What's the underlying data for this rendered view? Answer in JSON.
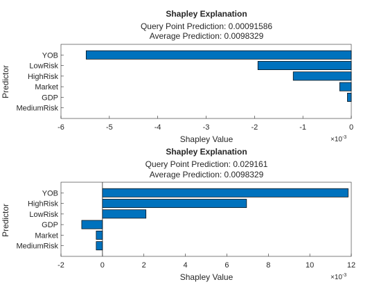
{
  "chart_data": [
    {
      "type": "bar",
      "orientation": "horizontal",
      "title": "Shapley Explanation",
      "subtitle_lines": [
        "Query Point Prediction: 0.00091586",
        "Average Prediction: 0.0098329"
      ],
      "xlabel": "Shapley Value",
      "ylabel": "Predictor",
      "x_exponent_label": "×10",
      "x_exponent_power": "-3",
      "xlim": [
        -6,
        0
      ],
      "xticks": [
        -6,
        -5,
        -4,
        -3,
        -2,
        -1,
        0
      ],
      "xtick_labels": [
        "-6",
        "-5",
        "-4",
        "-3",
        "-2",
        "-1",
        "0"
      ],
      "categories": [
        "YOB",
        "LowRisk",
        "HighRisk",
        "Market",
        "GDP",
        "MediumRisk"
      ],
      "values": [
        -5.48,
        -1.93,
        -1.2,
        -0.24,
        -0.08,
        0
      ],
      "bar_color": "#0072BD",
      "grid": false
    },
    {
      "type": "bar",
      "orientation": "horizontal",
      "title": "Shapley Explanation",
      "subtitle_lines": [
        "Query Point Prediction: 0.029161",
        "Average Prediction: 0.0098329"
      ],
      "xlabel": "Shapley Value",
      "ylabel": "Predictor",
      "x_exponent_label": "×10",
      "x_exponent_power": "-3",
      "xlim": [
        -2,
        12
      ],
      "xticks": [
        -2,
        0,
        2,
        4,
        6,
        8,
        10,
        12
      ],
      "xtick_labels": [
        "-2",
        "0",
        "2",
        "4",
        "6",
        "8",
        "10",
        "12"
      ],
      "categories": [
        "YOB",
        "HighRisk",
        "LowRisk",
        "GDP",
        "Market",
        "MediumRisk"
      ],
      "values": [
        11.85,
        6.95,
        2.1,
        -1.0,
        -0.3,
        -0.3
      ],
      "bar_color": "#0072BD",
      "grid": false
    }
  ]
}
